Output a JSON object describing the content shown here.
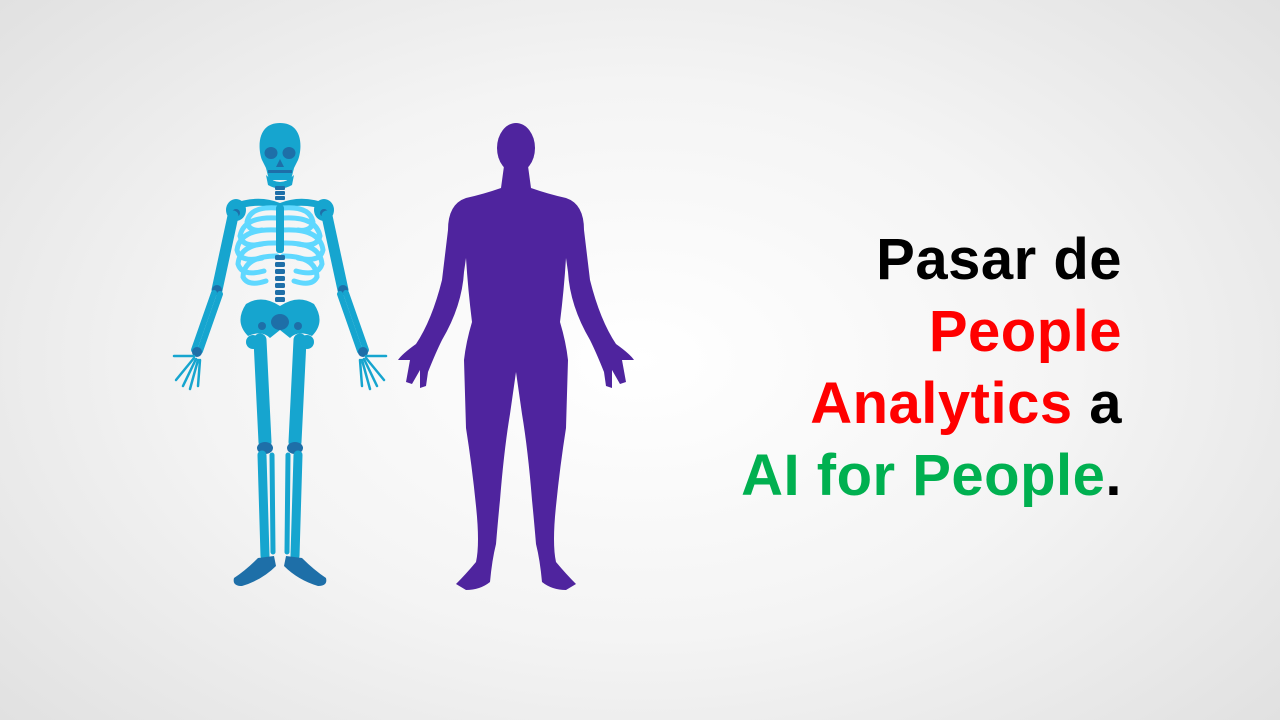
{
  "headline": {
    "line1": {
      "part1": "Pasar de"
    },
    "line2": {
      "part1": "People"
    },
    "line3": {
      "part1": "Analytics",
      "part2": " a"
    },
    "line4": {
      "part1": "AI for People",
      "part2": "."
    }
  },
  "colors": {
    "background": "#f2f2f2",
    "text_black": "#000000",
    "text_red": "#ff0000",
    "text_green": "#00b050",
    "skeleton_bone": "#16a5cf",
    "skeleton_dark": "#1e6fa8",
    "skeleton_light": "#5fd8ff",
    "silhouette": "#4f249e"
  },
  "illustration": {
    "left_figure": "skeleton-illustration",
    "right_figure": "human-silhouette-illustration"
  }
}
